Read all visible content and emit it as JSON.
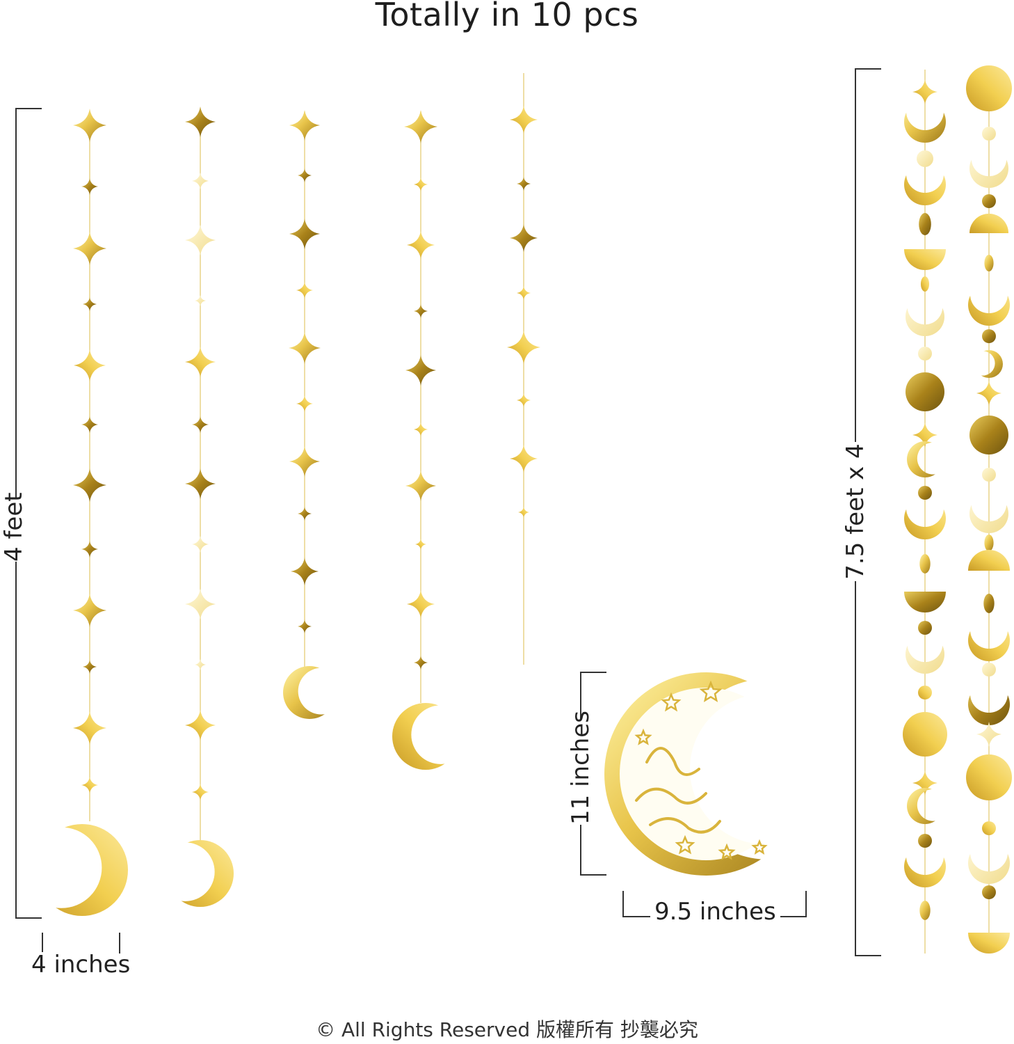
{
  "title": "Totally in 10 pcs",
  "dimensions": {
    "star_height": "4 feet",
    "star_width": "4 inches",
    "moon_height": "11 inches",
    "moon_width": "9.5 inches",
    "circle_length": "7.5 feet x 4"
  },
  "copyright": "© All Rights Reserved 版權所有  抄襲必究",
  "colors": {
    "gold_light": "#f7e27a",
    "gold_mid": "#e5c24a",
    "gold_dark": "#b88f1c",
    "pale_gold": "#f6ebb9"
  }
}
